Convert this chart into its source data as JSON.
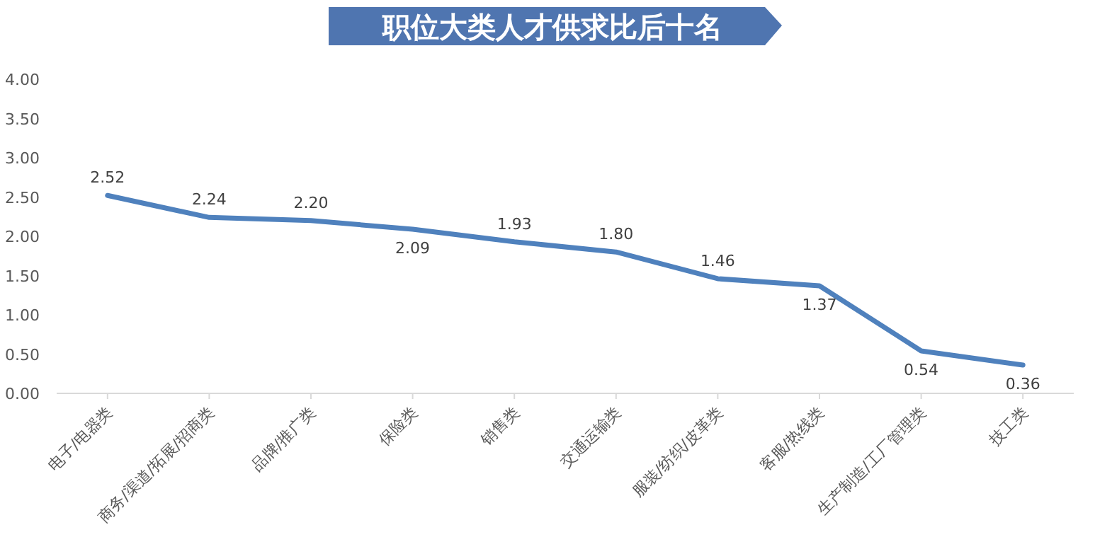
{
  "chart_data": {
    "type": "line",
    "title": "职位大类人才供求比后十名",
    "categories": [
      "电子/电器类",
      "商务/渠道/拓展/招商类",
      "品牌/推广类",
      "保险类",
      "销售类",
      "交通运输类",
      "服装/纺织/皮革类",
      "客服/热线类",
      "生产制造/工厂管理类",
      "技工类"
    ],
    "series": [
      {
        "color": "#4f81bd",
        "values": [
          2.52,
          2.24,
          2.2,
          2.09,
          1.93,
          1.8,
          1.46,
          1.37,
          0.54,
          0.36
        ],
        "value_labels": [
          "2.52",
          "2.24",
          "2.20",
          "2.09",
          "1.93",
          "1.80",
          "1.46",
          "1.37",
          "0.54",
          "0.36"
        ]
      }
    ],
    "ylim": [
      0,
      4
    ],
    "yticks": [
      {
        "value": 0,
        "label": "0.00"
      },
      {
        "value": 0.5,
        "label": "0.50"
      },
      {
        "value": 1,
        "label": "1.00"
      },
      {
        "value": 1.5,
        "label": "1.50"
      },
      {
        "value": 2,
        "label": "2.00"
      },
      {
        "value": 2.5,
        "label": "2.50"
      },
      {
        "value": 3,
        "label": "3.00"
      },
      {
        "value": 3.5,
        "label": "3.50"
      },
      {
        "value": 4,
        "label": "4.00"
      }
    ],
    "grid": false,
    "marker": "none",
    "line_style": "solid"
  }
}
